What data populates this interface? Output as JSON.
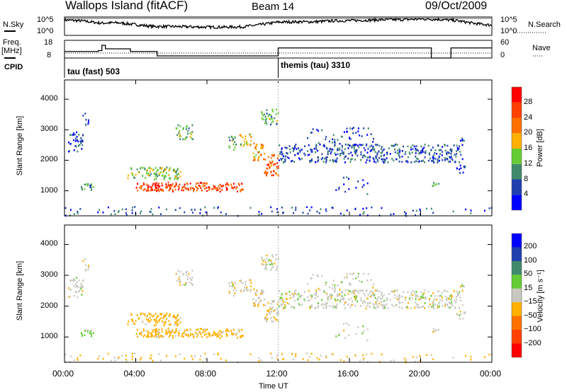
{
  "header": {
    "station": "Wallops Island (fitACF)",
    "beam": "Beam 14",
    "date": "09/Oct/2009"
  },
  "status_panel": {
    "nsky_label": "N.Sky",
    "nsky_hi": "10^5",
    "nsky_lo": "10^0",
    "nsearch_label": "N.Search",
    "nsearch_hi": "10^5",
    "nsearch_lo": "10^0",
    "freq_label": "Freq.",
    "freq_unit": "[MHz]",
    "freq_hi": "18",
    "freq_lo": "8",
    "nave_label": "Nave",
    "nave_hi": "60",
    "nave_lo": "0",
    "cpid_label": "CPID",
    "cpid": [
      {
        "name": "tau (fast) 503",
        "start": 0
      },
      {
        "name": "themis (tau) 3310",
        "start": 12
      }
    ]
  },
  "chart_data": {
    "type": "heatmap",
    "xlabel": "Time UT",
    "ylabel": "Slant Range [km]",
    "xlim": [
      0,
      24
    ],
    "ylim": [
      180,
      4630
    ],
    "xticks": [
      "00:00",
      "04:00",
      "08:00",
      "12:00",
      "16:00",
      "20:00",
      "00:00"
    ],
    "yticks": [
      "1000",
      "2000",
      "3000",
      "4000"
    ],
    "nsky_log": [
      4.5,
      4.2,
      3.5,
      3.6,
      3.0,
      2.4,
      2.4,
      2.3,
      2.2,
      2.2,
      2.3,
      3,
      3.8,
      3.9,
      3.9,
      4.2,
      4.3,
      4.4,
      4.6,
      4.6,
      4.8,
      4.7,
      4.3,
      3.4,
      2.8
    ],
    "freq_steps": [
      [
        0,
        12.5
      ],
      [
        1.9,
        13
      ],
      [
        2.1,
        16
      ],
      [
        2.3,
        14
      ],
      [
        3.7,
        12.5
      ],
      [
        5.2,
        10
      ],
      [
        12,
        14.5
      ],
      [
        20.6,
        0
      ],
      [
        21.7,
        14.5
      ],
      [
        24,
        14.5
      ]
    ],
    "nave_steps": [
      [
        0,
        12
      ],
      [
        5.2,
        12
      ],
      [
        12,
        12
      ],
      [
        20.6,
        0
      ],
      [
        21.8,
        12
      ],
      [
        24,
        12
      ]
    ],
    "power_colorbar": {
      "label": "Power [dB]",
      "ticks": [
        "4",
        "8",
        "12",
        "16",
        "20",
        "24",
        "28"
      ],
      "colors": [
        "#0000ff",
        "#2040b0",
        "#3f8a6a",
        "#66cc33",
        "#ffb000",
        "#ff7000",
        "#ff4000",
        "#ff0000"
      ]
    },
    "velocity_colorbar": {
      "label": "Velocity [m s⁻¹]",
      "ticks": [
        "200",
        "100",
        "50",
        "15",
        "−15",
        "−50",
        "−100",
        "−200"
      ],
      "colors": [
        "#0000ff",
        "#2040b0",
        "#3f8a6a",
        "#66cc33",
        "#c8c8c0",
        "#ffb000",
        "#ff7000",
        "#ff4000",
        "#ff0000"
      ]
    },
    "echo_regions": [
      {
        "t": [
          0.2,
          1.0
        ],
        "r": [
          2300,
          3000
        ],
        "power": 5,
        "vel": 0,
        "density": 0.5
      },
      {
        "t": [
          1.0,
          1.4
        ],
        "r": [
          3100,
          3600
        ],
        "power": 5,
        "vel": 0,
        "density": 0.3
      },
      {
        "t": [
          0.8,
          1.6
        ],
        "r": [
          1050,
          1250
        ],
        "power": 10,
        "vel": 20,
        "density": 0.7
      },
      {
        "t": [
          3.5,
          6.5
        ],
        "r": [
          1400,
          1800
        ],
        "power": 14,
        "vel": -30,
        "density": 0.6
      },
      {
        "t": [
          4.0,
          10.0
        ],
        "r": [
          1000,
          1300
        ],
        "power": 26,
        "vel": -30,
        "density": 0.75
      },
      {
        "t": [
          6.2,
          7.2
        ],
        "r": [
          2700,
          3200
        ],
        "power": 12,
        "vel": 0,
        "density": 0.45
      },
      {
        "t": [
          9.2,
          9.6
        ],
        "r": [
          2300,
          2900
        ],
        "power": 12,
        "vel": 0,
        "density": 0.5
      },
      {
        "t": [
          9.8,
          10.5
        ],
        "r": [
          2500,
          2900
        ],
        "power": 16,
        "vel": -10,
        "density": 0.6
      },
      {
        "t": [
          10.5,
          11.2
        ],
        "r": [
          2000,
          2600
        ],
        "power": 20,
        "vel": -10,
        "density": 0.6
      },
      {
        "t": [
          11.2,
          12.0
        ],
        "r": [
          1500,
          2200
        ],
        "power": 24,
        "vel": -10,
        "density": 0.65
      },
      {
        "t": [
          11.0,
          12.0
        ],
        "r": [
          3200,
          3700
        ],
        "power": 12,
        "vel": 0,
        "density": 0.5
      },
      {
        "t": [
          12.0,
          22.0
        ],
        "r": [
          1950,
          2550
        ],
        "power": 7,
        "vel": 0,
        "density": 0.5
      },
      {
        "t": [
          13.5,
          17.5
        ],
        "r": [
          2500,
          3100
        ],
        "power": 4,
        "vel": 0,
        "density": 0.15
      },
      {
        "t": [
          15.0,
          17.0
        ],
        "r": [
          900,
          1500
        ],
        "power": 5,
        "vel": 0,
        "density": 0.1
      },
      {
        "t": [
          20.5,
          21.0
        ],
        "r": [
          1150,
          1300
        ],
        "power": 12,
        "vel": 0,
        "density": 0.6
      },
      {
        "t": [
          22.0,
          22.5
        ],
        "r": [
          1600,
          2800
        ],
        "power": 6,
        "vel": 0,
        "density": 0.3
      },
      {
        "t": [
          0.0,
          24.0
        ],
        "r": [
          200,
          500
        ],
        "power": 6,
        "vel": -20,
        "density": 0.12
      }
    ]
  }
}
